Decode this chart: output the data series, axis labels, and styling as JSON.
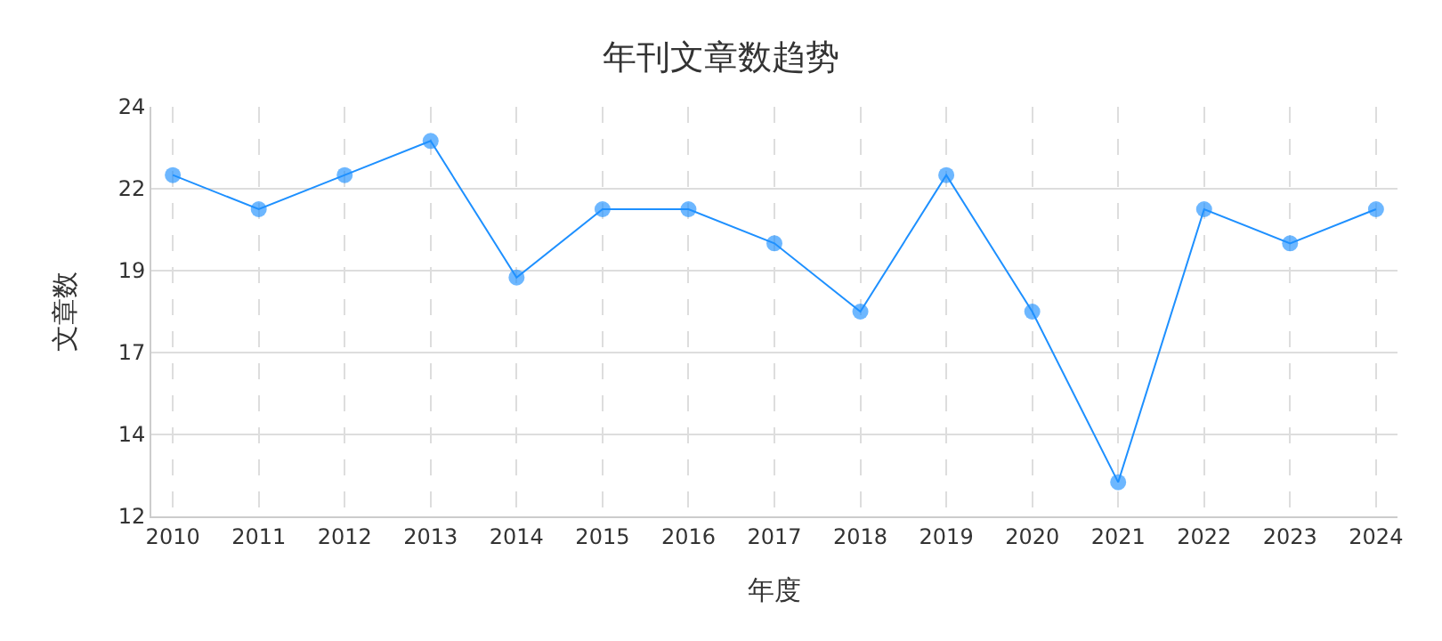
{
  "chart_data": {
    "type": "line",
    "title": "年刊文章数趋势",
    "xlabel": "年度",
    "ylabel": "文章数",
    "categories": [
      "2010",
      "2011",
      "2012",
      "2013",
      "2014",
      "2015",
      "2016",
      "2017",
      "2018",
      "2019",
      "2020",
      "2021",
      "2022",
      "2023",
      "2024"
    ],
    "series": [
      {
        "color": "#1e90ff",
        "values": [
          22,
          21,
          22,
          23,
          19,
          21,
          21,
          20,
          18,
          22,
          18,
          13,
          21,
          20,
          21
        ]
      }
    ],
    "ylim": [
      12,
      24
    ],
    "yticks": [
      {
        "value": 12,
        "label": "12"
      },
      {
        "value": 14.4,
        "label": "14"
      },
      {
        "value": 16.8,
        "label": "17"
      },
      {
        "value": 19.2,
        "label": "19"
      },
      {
        "value": 21.6,
        "label": "22"
      },
      {
        "value": 24,
        "label": "24"
      }
    ],
    "grid": true,
    "marker": "circle",
    "line_style": "solid"
  }
}
